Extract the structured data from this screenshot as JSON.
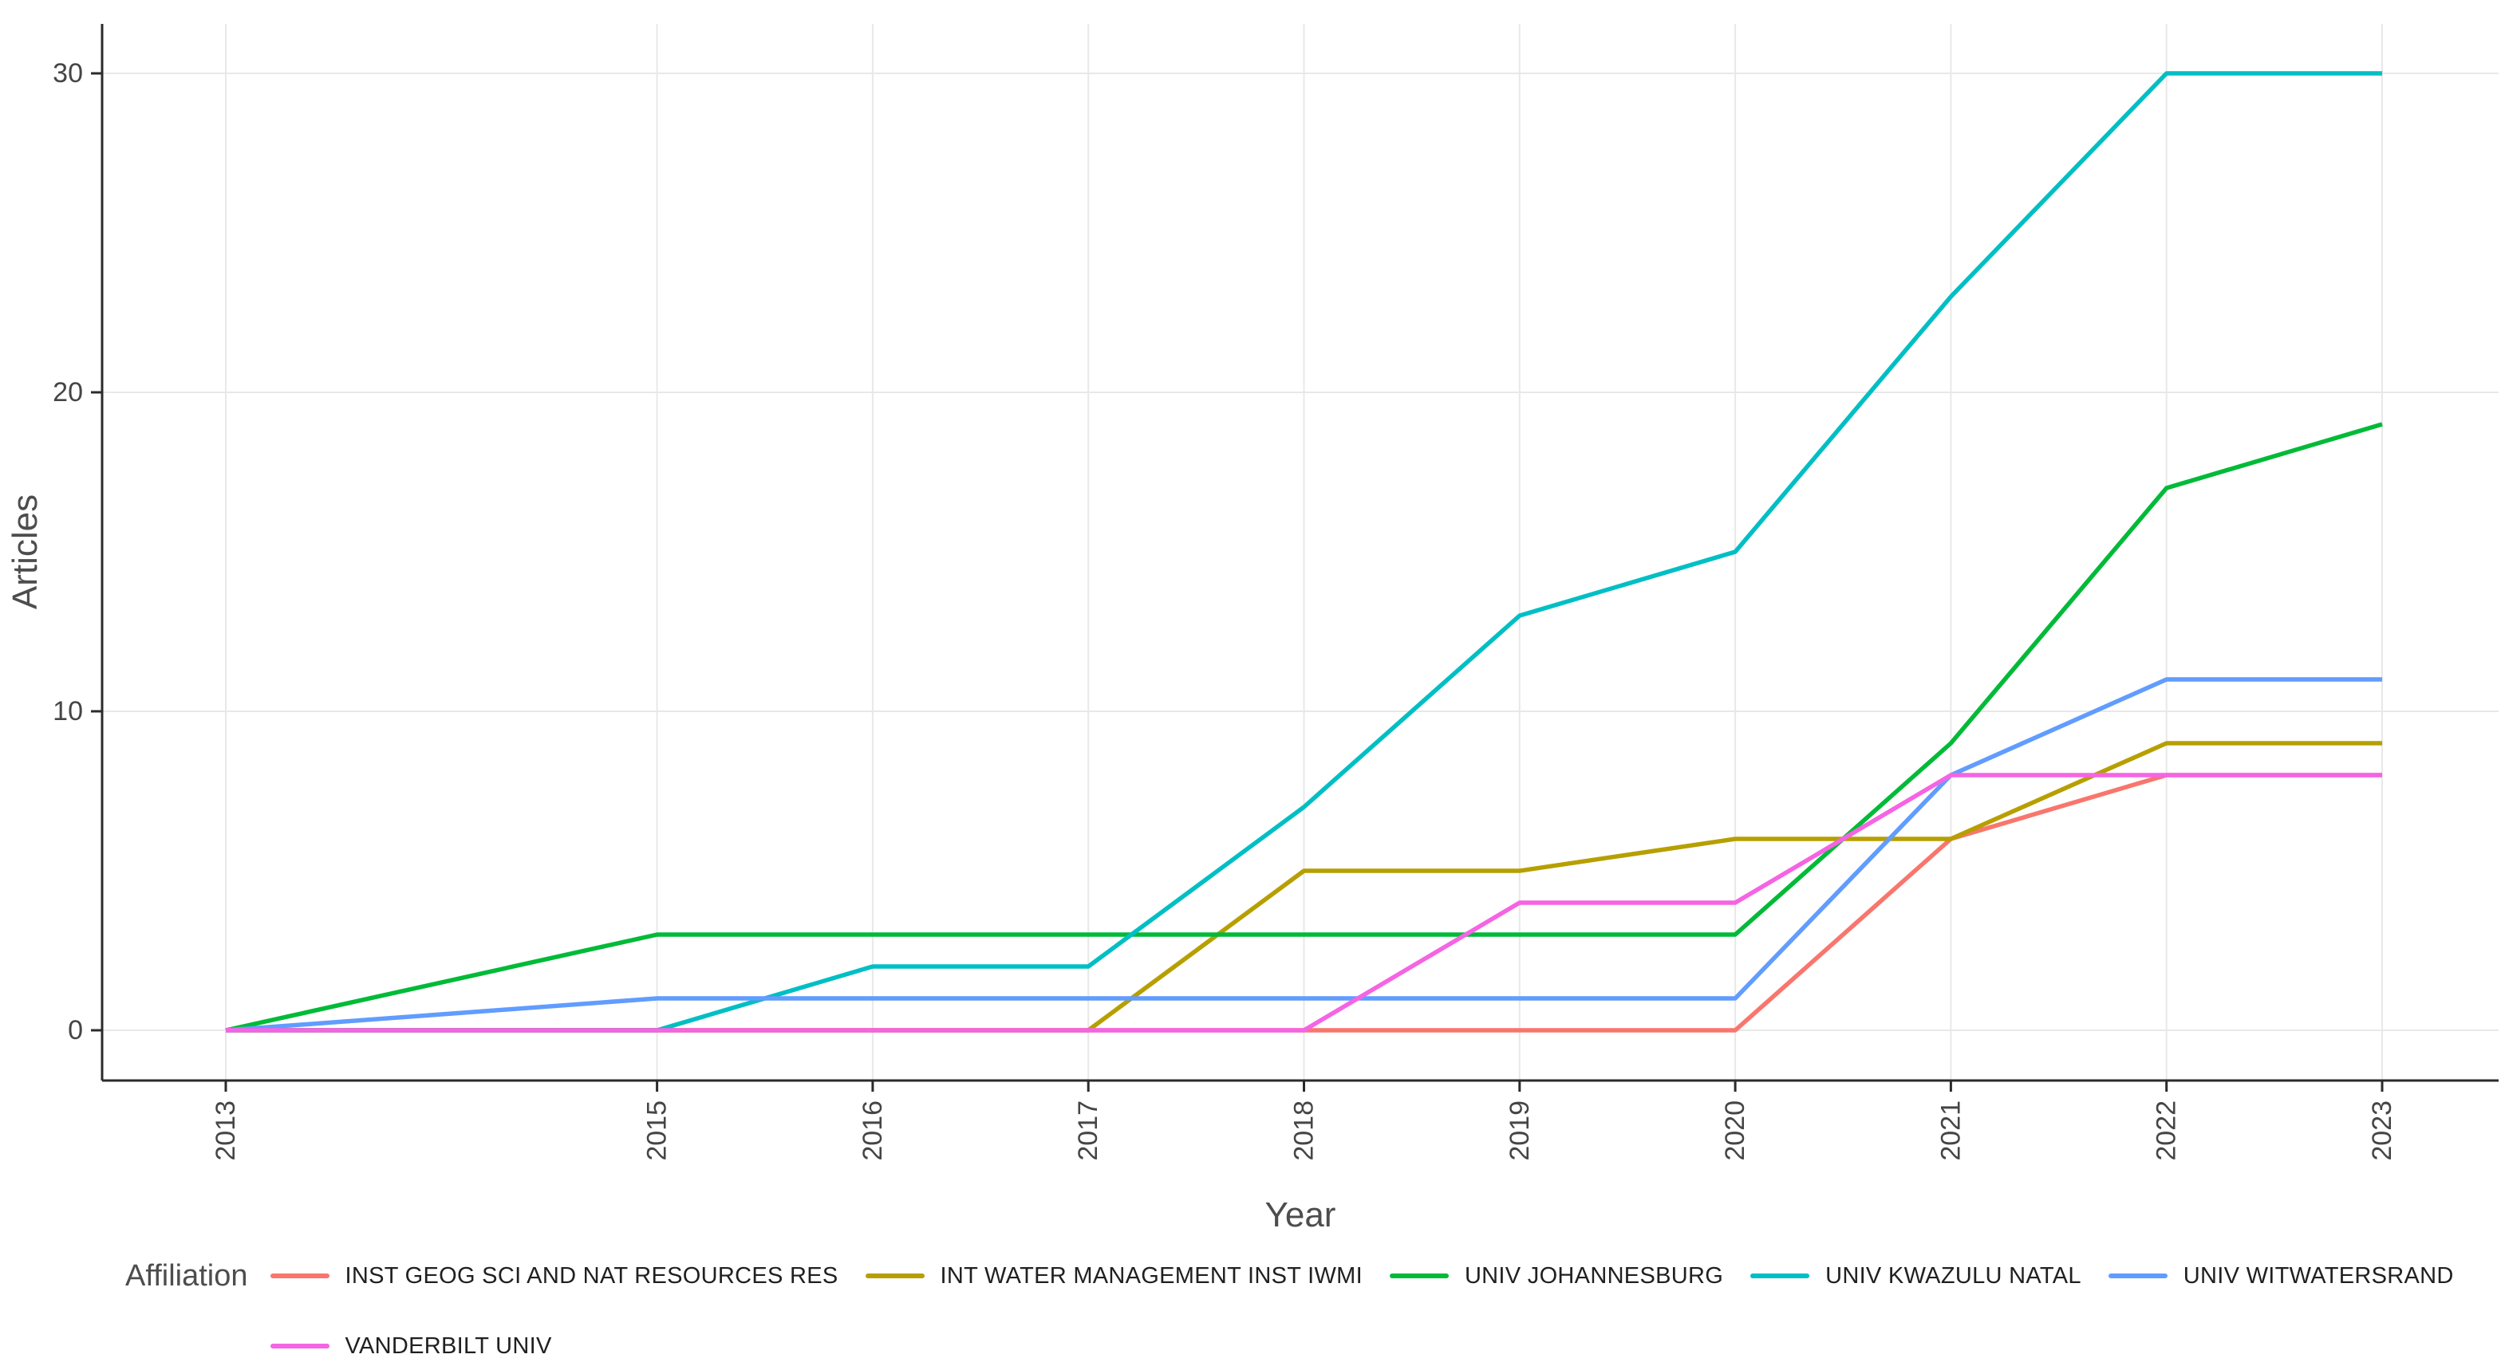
{
  "chart_data": {
    "type": "line",
    "title": "",
    "xlabel": "Year",
    "ylabel": "Articles",
    "x": [
      2013,
      2015,
      2016,
      2017,
      2018,
      2019,
      2020,
      2021,
      2022,
      2023
    ],
    "x_tick_labels": [
      "2013",
      "2015",
      "2016",
      "2017",
      "2018",
      "2019",
      "2020",
      "2021",
      "2022",
      "2023"
    ],
    "y_ticks": [
      0,
      10,
      20,
      30
    ],
    "ylim": [
      0,
      30
    ],
    "xlim": [
      2013,
      2023
    ],
    "grid": true,
    "legend_position": "bottom",
    "legend_title": "Affiliation",
    "legend_items_per_row": 5,
    "series": [
      {
        "name": "INST GEOG SCI AND NAT RESOURCES RES",
        "color": "#F8766D",
        "values": [
          0,
          0,
          0,
          0,
          0,
          0,
          0,
          6,
          8,
          8
        ]
      },
      {
        "name": "INT WATER MANAGEMENT INST IWMI",
        "color": "#B79F00",
        "values": [
          0,
          0,
          0,
          0,
          5,
          5,
          6,
          6,
          9,
          9
        ]
      },
      {
        "name": "UNIV JOHANNESBURG",
        "color": "#00BA38",
        "values": [
          0,
          3,
          3,
          3,
          3,
          3,
          3,
          9,
          17,
          19
        ]
      },
      {
        "name": "UNIV KWAZULU NATAL",
        "color": "#00BFC4",
        "values": [
          0,
          0,
          2,
          2,
          7,
          13,
          15,
          23,
          30,
          30
        ]
      },
      {
        "name": "UNIV WITWATERSRAND",
        "color": "#619CFF",
        "values": [
          0,
          1,
          1,
          1,
          1,
          1,
          1,
          8,
          11,
          11
        ]
      },
      {
        "name": "VANDERBILT UNIV",
        "color": "#F564E3",
        "values": [
          0,
          0,
          0,
          0,
          0,
          4,
          4,
          8,
          8,
          8
        ]
      }
    ]
  },
  "axes": {
    "x_title": "Year",
    "y_title": "Articles"
  },
  "legend": {
    "title": "Affiliation"
  }
}
